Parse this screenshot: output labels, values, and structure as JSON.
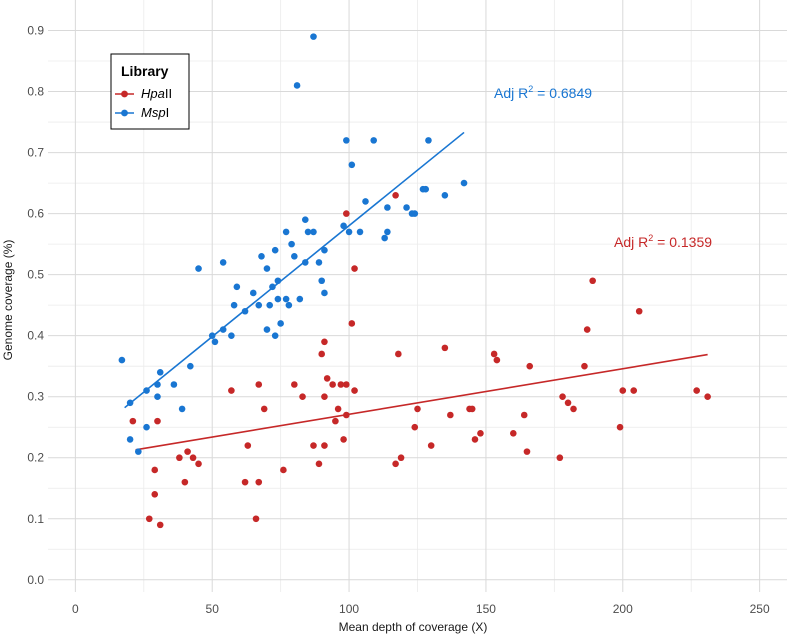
{
  "chart_data": {
    "type": "scatter",
    "title": "",
    "xlabel": "Mean depth of coverage (X)",
    "ylabel": "Genome coverage (%)",
    "xlim": [
      -10,
      260
    ],
    "ylim": [
      -0.02,
      0.95
    ],
    "x_ticks": [
      0,
      50,
      100,
      150,
      200,
      250
    ],
    "y_ticks": [
      0.0,
      0.1,
      0.2,
      0.3,
      0.4,
      0.5,
      0.6,
      0.7,
      0.8,
      0.9
    ],
    "x_tick_labels": [
      "0",
      "50",
      "100",
      "150",
      "200",
      "250"
    ],
    "y_tick_labels": [
      "0.0",
      "0.1",
      "0.2",
      "0.3",
      "0.4",
      "0.5",
      "0.6",
      "0.7",
      "0.8",
      "0.9"
    ],
    "grid": true,
    "legend": {
      "title": "Library",
      "position": "top-left",
      "entries": [
        {
          "series": "HpaII",
          "text_italic": "Hpa",
          "text_roman": "II"
        },
        {
          "series": "MspI",
          "text_italic": "Msp",
          "text_roman": "I"
        }
      ]
    },
    "series": [
      {
        "name": "HpaII",
        "color": "#c62828",
        "points": [
          [
            21,
            0.26
          ],
          [
            27,
            0.1
          ],
          [
            29,
            0.18
          ],
          [
            29,
            0.14
          ],
          [
            31,
            0.09
          ],
          [
            30,
            0.26
          ],
          [
            38,
            0.2
          ],
          [
            40,
            0.16
          ],
          [
            41,
            0.21
          ],
          [
            43,
            0.2
          ],
          [
            45,
            0.19
          ],
          [
            57,
            0.31
          ],
          [
            62,
            0.16
          ],
          [
            63,
            0.22
          ],
          [
            66,
            0.1
          ],
          [
            67,
            0.32
          ],
          [
            67,
            0.16
          ],
          [
            69,
            0.28
          ],
          [
            76,
            0.18
          ],
          [
            80,
            0.32
          ],
          [
            83,
            0.3
          ],
          [
            87,
            0.22
          ],
          [
            89,
            0.19
          ],
          [
            90,
            0.37
          ],
          [
            91,
            0.22
          ],
          [
            91,
            0.3
          ],
          [
            91,
            0.39
          ],
          [
            92,
            0.33
          ],
          [
            94,
            0.32
          ],
          [
            95,
            0.26
          ],
          [
            96,
            0.28
          ],
          [
            97,
            0.32
          ],
          [
            98,
            0.23
          ],
          [
            99,
            0.32
          ],
          [
            99,
            0.27
          ],
          [
            99,
            0.6
          ],
          [
            101,
            0.42
          ],
          [
            102,
            0.31
          ],
          [
            102,
            0.51
          ],
          [
            117,
            0.63
          ],
          [
            117,
            0.19
          ],
          [
            118,
            0.37
          ],
          [
            119,
            0.2
          ],
          [
            124,
            0.25
          ],
          [
            125,
            0.28
          ],
          [
            130,
            0.22
          ],
          [
            135,
            0.38
          ],
          [
            137,
            0.27
          ],
          [
            144,
            0.28
          ],
          [
            145,
            0.28
          ],
          [
            146,
            0.23
          ],
          [
            148,
            0.24
          ],
          [
            153,
            0.37
          ],
          [
            154,
            0.36
          ],
          [
            160,
            0.24
          ],
          [
            164,
            0.27
          ],
          [
            165,
            0.21
          ],
          [
            166,
            0.35
          ],
          [
            177,
            0.2
          ],
          [
            178,
            0.3
          ],
          [
            180,
            0.29
          ],
          [
            182,
            0.28
          ],
          [
            186,
            0.35
          ],
          [
            187,
            0.41
          ],
          [
            189,
            0.49
          ],
          [
            199,
            0.25
          ],
          [
            200,
            0.31
          ],
          [
            204,
            0.31
          ],
          [
            206,
            0.44
          ],
          [
            227,
            0.31
          ],
          [
            231,
            0.3
          ]
        ],
        "trend_line": {
          "x": [
            22,
            231
          ],
          "y": [
            0.213,
            0.369
          ]
        },
        "annotation": {
          "prefix": "Adj R",
          "sup": "2",
          "suffix": " = 0.1359"
        }
      },
      {
        "name": "MspI",
        "color": "#1976d2",
        "points": [
          [
            17,
            0.36
          ],
          [
            20,
            0.23
          ],
          [
            20,
            0.29
          ],
          [
            23,
            0.21
          ],
          [
            26,
            0.25
          ],
          [
            26,
            0.31
          ],
          [
            30,
            0.3
          ],
          [
            30,
            0.32
          ],
          [
            31,
            0.34
          ],
          [
            36,
            0.32
          ],
          [
            39,
            0.28
          ],
          [
            42,
            0.35
          ],
          [
            45,
            0.51
          ],
          [
            50,
            0.4
          ],
          [
            51,
            0.39
          ],
          [
            54,
            0.41
          ],
          [
            54,
            0.52
          ],
          [
            57,
            0.4
          ],
          [
            58,
            0.45
          ],
          [
            59,
            0.48
          ],
          [
            62,
            0.44
          ],
          [
            65,
            0.47
          ],
          [
            67,
            0.45
          ],
          [
            68,
            0.53
          ],
          [
            70,
            0.51
          ],
          [
            70,
            0.41
          ],
          [
            71,
            0.45
          ],
          [
            72,
            0.48
          ],
          [
            73,
            0.4
          ],
          [
            73,
            0.54
          ],
          [
            74,
            0.49
          ],
          [
            74,
            0.46
          ],
          [
            75,
            0.42
          ],
          [
            77,
            0.46
          ],
          [
            77,
            0.57
          ],
          [
            78,
            0.45
          ],
          [
            79,
            0.55
          ],
          [
            80,
            0.53
          ],
          [
            81,
            0.81
          ],
          [
            82,
            0.46
          ],
          [
            84,
            0.52
          ],
          [
            84,
            0.59
          ],
          [
            85,
            0.57
          ],
          [
            87,
            0.57
          ],
          [
            87,
            0.89
          ],
          [
            89,
            0.52
          ],
          [
            90,
            0.49
          ],
          [
            91,
            0.47
          ],
          [
            91,
            0.54
          ],
          [
            98,
            0.58
          ],
          [
            99,
            0.72
          ],
          [
            100,
            0.57
          ],
          [
            101,
            0.68
          ],
          [
            104,
            0.57
          ],
          [
            106,
            0.62
          ],
          [
            109,
            0.72
          ],
          [
            113,
            0.56
          ],
          [
            114,
            0.57
          ],
          [
            114,
            0.61
          ],
          [
            121,
            0.61
          ],
          [
            123,
            0.6
          ],
          [
            124,
            0.6
          ],
          [
            127,
            0.64
          ],
          [
            128,
            0.64
          ],
          [
            129,
            0.72
          ],
          [
            135,
            0.63
          ],
          [
            142,
            0.65
          ]
        ],
        "trend_line": {
          "x": [
            18,
            142
          ],
          "y": [
            0.282,
            0.733
          ]
        },
        "annotation": {
          "prefix": "Adj R",
          "sup": "2",
          "suffix": " = 0.6849"
        }
      }
    ]
  }
}
